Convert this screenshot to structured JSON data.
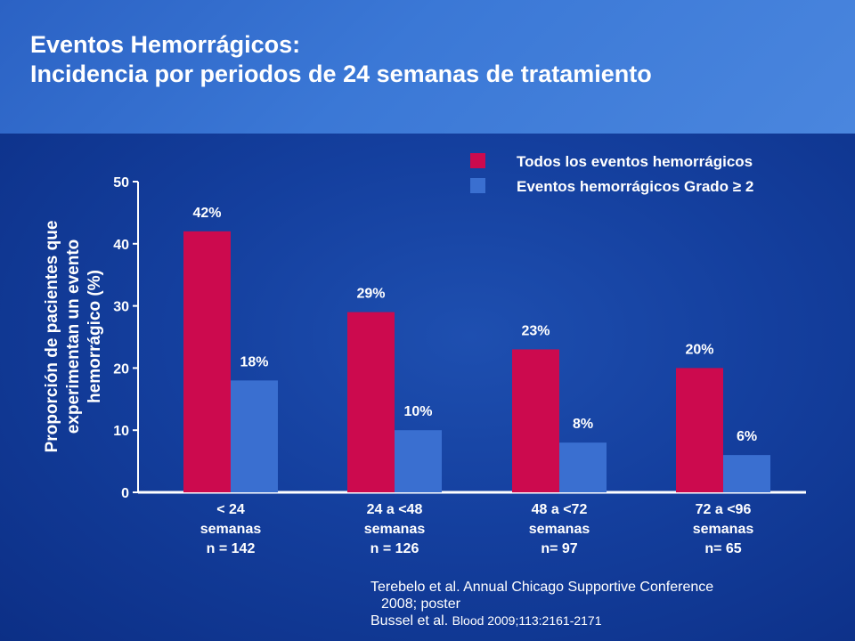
{
  "title": {
    "line1": "Eventos Hemorrágicos:",
    "line2": "Incidencia por periodos de 24 semanas de tratamiento"
  },
  "chart_data": {
    "type": "bar",
    "ylabel": [
      "Proporción de pacientes que",
      "experimentan un evento",
      "hemorrágico (%)"
    ],
    "ylim": [
      0,
      50
    ],
    "yticks": [
      0,
      10,
      20,
      30,
      40,
      50
    ],
    "categories": [
      [
        "< 24",
        "semanas",
        "n = 142"
      ],
      [
        "24 a <48",
        "semanas",
        "n = 126"
      ],
      [
        "48 a <72",
        "semanas",
        "n= 97"
      ],
      [
        "72 a <96",
        "semanas",
        "n= 65"
      ]
    ],
    "series": [
      {
        "name": "Todos los eventos hemorrágicos",
        "color": "#cc0a4e",
        "values": [
          42,
          29,
          23,
          20
        ],
        "labels": [
          "42%",
          "29%",
          "23%",
          "20%"
        ]
      },
      {
        "name": "Eventos hemorrágicos Grado ≥ 2",
        "color": "#3a6fd0",
        "values": [
          18,
          10,
          8,
          6
        ],
        "labels": [
          "18%",
          "10%",
          "8%",
          "6%"
        ]
      }
    ]
  },
  "source": {
    "line1": "Terebelo et al. Annual Chicago Supportive Conference",
    "line2": "2008; poster",
    "line3_a": "Bussel et al.",
    "line3_b": "Blood 2009;113:2161-2171"
  }
}
